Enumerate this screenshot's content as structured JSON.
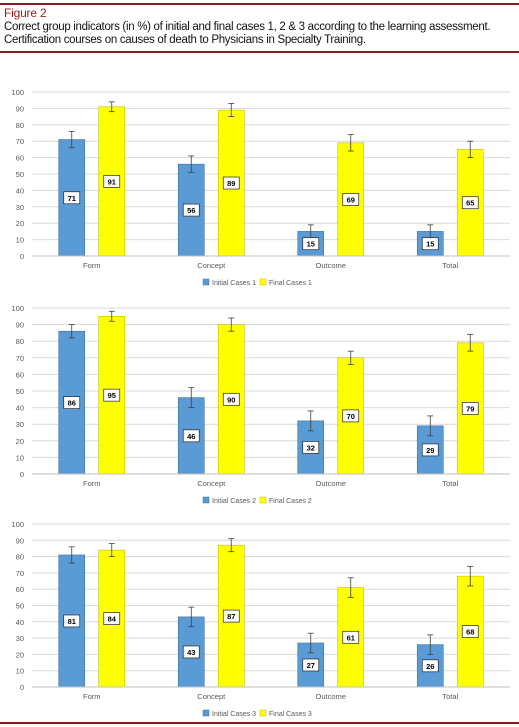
{
  "figure": {
    "label": "Figure 2",
    "caption": "Correct group indicators (in %) of initial and final cases 1, 2 & 3 according to the learning assessment. Certification courses on causes of death to Physicians in Specialty Training."
  },
  "colors": {
    "initial": "#5b9bd5",
    "final": "#ffff00",
    "accent": "#8b1a1a"
  },
  "chart_data": [
    {
      "type": "bar",
      "categories": [
        "Form",
        "Concept",
        "Outcome",
        "Total"
      ],
      "ylim": [
        0,
        100
      ],
      "yticks": [
        0,
        10,
        20,
        30,
        40,
        50,
        60,
        70,
        80,
        90,
        100
      ],
      "series": [
        {
          "name": "Initial Cases 1",
          "values": [
            71,
            56,
            15,
            15
          ],
          "errors": [
            5,
            5,
            4,
            4
          ]
        },
        {
          "name": "Final Cases 1",
          "values": [
            91,
            89,
            69,
            65
          ],
          "errors": [
            3,
            4,
            5,
            5
          ]
        }
      ],
      "legend": "bottom-center",
      "grid": true
    },
    {
      "type": "bar",
      "categories": [
        "Form",
        "Concept",
        "Outcome",
        "Total"
      ],
      "ylim": [
        0,
        100
      ],
      "yticks": [
        0,
        10,
        20,
        30,
        40,
        50,
        60,
        70,
        80,
        90,
        100
      ],
      "series": [
        {
          "name": "Initial Cases 2",
          "values": [
            86,
            46,
            32,
            29
          ],
          "errors": [
            4,
            6,
            6,
            6
          ]
        },
        {
          "name": "Final Cases 2",
          "values": [
            95,
            90,
            70,
            79
          ],
          "errors": [
            3,
            4,
            4,
            5
          ]
        }
      ],
      "legend": "bottom-center",
      "grid": true
    },
    {
      "type": "bar",
      "categories": [
        "Form",
        "Concept",
        "Outcome",
        "Total"
      ],
      "ylim": [
        0,
        100
      ],
      "yticks": [
        0,
        10,
        20,
        30,
        40,
        50,
        60,
        70,
        80,
        90,
        100
      ],
      "series": [
        {
          "name": "Initial Cases 3",
          "values": [
            81,
            43,
            27,
            26
          ],
          "errors": [
            5,
            6,
            6,
            6
          ]
        },
        {
          "name": "Final Cases 3",
          "values": [
            84,
            87,
            61,
            68
          ],
          "errors": [
            4,
            4,
            6,
            6
          ]
        }
      ],
      "legend": "bottom-center",
      "grid": true
    }
  ]
}
